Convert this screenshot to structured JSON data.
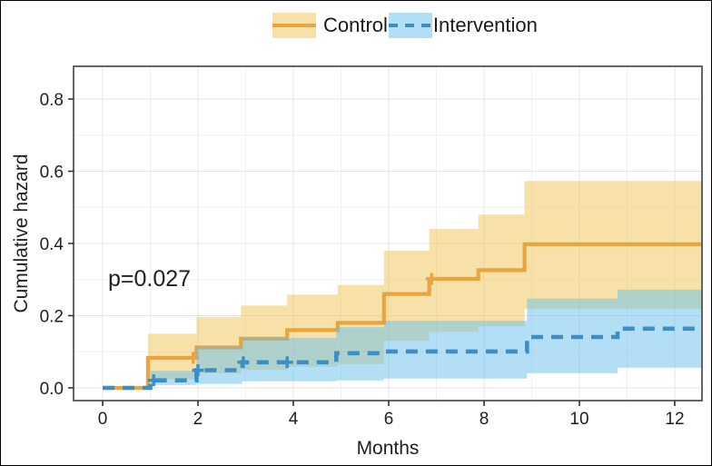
{
  "chart_data": {
    "type": "line",
    "subtype": "cumulative-hazard-step-curves-with-confidence-bands",
    "title": "",
    "xlabel": "Months",
    "ylabel": "Cumulative hazard",
    "annotation": "p=0.027",
    "legend_position": "top",
    "grid": true,
    "xlim": [
      -0.6,
      12.57
    ],
    "ylim": [
      -0.035,
      0.89
    ],
    "x_ticks": [
      0,
      2,
      4,
      6,
      8,
      10,
      12
    ],
    "x_minor_gridlines": [
      1,
      3,
      5,
      7,
      9,
      11
    ],
    "y_ticks": [
      {
        "label": "0.0",
        "value": 0.0
      },
      {
        "label": "0.2",
        "value": 0.2
      },
      {
        "label": "0.4",
        "value": 0.4
      },
      {
        "label": "0.6",
        "value": 0.6
      },
      {
        "label": "0.8",
        "value": 0.8
      }
    ],
    "y_minor_gridlines": [
      0.1,
      0.3,
      0.5,
      0.7
    ],
    "series": [
      {
        "name": "Control",
        "line_style": "solid",
        "line_color": "#E8A43E",
        "band_color": "rgba(239,196,83,0.50)",
        "steps": {
          "t": [
            0,
            0.95,
            1.97,
            2.9,
            3.87,
            4.93,
            5.9,
            6.85,
            7.88,
            8.85
          ],
          "v": [
            0,
            0.083,
            0.112,
            0.136,
            0.16,
            0.18,
            0.26,
            0.302,
            0.326,
            0.398
          ]
        },
        "end_t": 12.57,
        "band": [
          [
            0.95,
            1.97,
            0.024,
            0.15
          ],
          [
            1.97,
            2.9,
            0.04,
            0.196
          ],
          [
            2.9,
            3.87,
            0.05,
            0.228
          ],
          [
            3.87,
            4.93,
            0.058,
            0.258
          ],
          [
            4.93,
            5.9,
            0.066,
            0.285
          ],
          [
            5.9,
            6.85,
            0.13,
            0.38
          ],
          [
            6.85,
            7.88,
            0.155,
            0.44
          ],
          [
            7.88,
            8.85,
            0.17,
            0.48
          ],
          [
            8.85,
            12.57,
            0.218,
            0.573
          ]
        ],
        "censor_marks": [
          [
            1.9,
            0.083
          ],
          [
            6.9,
            0.302
          ]
        ]
      },
      {
        "name": "Intervention",
        "line_style": "dashed",
        "line_color": "#3D8EC6",
        "band_color": "rgba(108,194,235,0.52)",
        "steps": {
          "t": [
            0,
            1.0,
            1.97,
            2.93,
            4.9,
            5.9,
            8.9,
            10.8
          ],
          "v": [
            0,
            0.021,
            0.049,
            0.071,
            0.096,
            0.101,
            0.141,
            0.164
          ]
        },
        "end_t": 12.57,
        "band": [
          [
            1.0,
            1.97,
            0.008,
            0.047
          ],
          [
            1.97,
            2.93,
            0.011,
            0.115
          ],
          [
            2.93,
            4.9,
            0.018,
            0.138
          ],
          [
            4.9,
            5.9,
            0.021,
            0.168
          ],
          [
            5.9,
            8.9,
            0.026,
            0.186
          ],
          [
            8.9,
            10.8,
            0.041,
            0.247
          ],
          [
            10.8,
            12.57,
            0.056,
            0.272
          ]
        ],
        "censor_marks": [
          [
            1.07,
            0.021
          ],
          [
            2.0,
            0.049
          ],
          [
            2.95,
            0.071
          ],
          [
            3.87,
            0.071
          ]
        ]
      }
    ],
    "colors": {
      "gridline_major": "#E3E6E9",
      "gridline_minor": "#EFF1F3",
      "panel_border": "#404040",
      "panel_background": "#FFFFFF",
      "text": "#1F1F1F"
    }
  },
  "legend": {
    "items": [
      {
        "label": "Control"
      },
      {
        "label": "Intervention"
      }
    ]
  }
}
